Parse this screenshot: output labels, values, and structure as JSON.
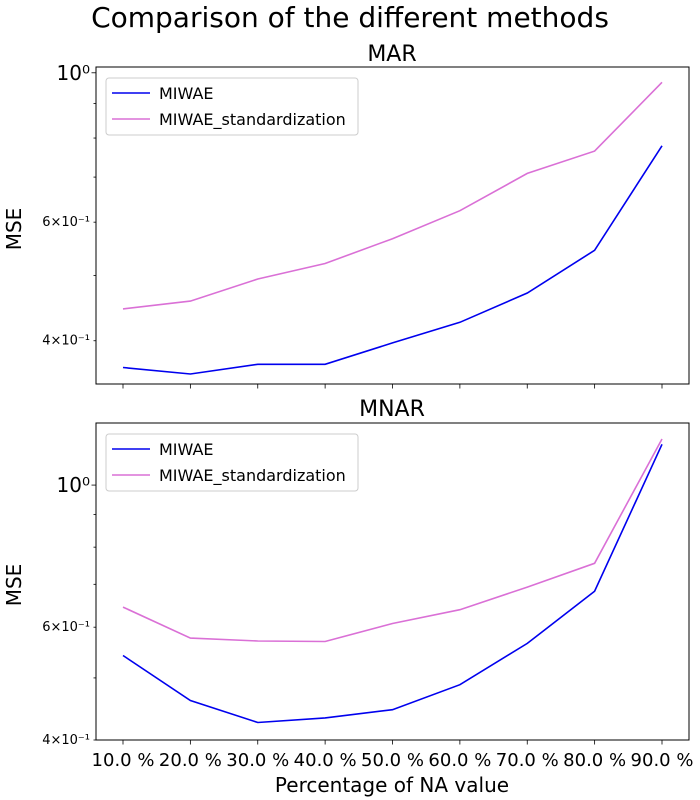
{
  "figure_title": "Comparison of the different methods",
  "x_label": "Percentage of NA value",
  "colors": {
    "MIWAE": "#0000ee",
    "MIWAE_standardization": "#da70d6"
  },
  "chart_data": [
    {
      "type": "line",
      "title": "MAR",
      "ylabel": "MSE",
      "yscale": "log",
      "ylim": [
        0.345,
        1.02
      ],
      "x": [
        "10.0 %",
        "20.0 %",
        "30.0 %",
        "40.0 %",
        "50.0 %",
        "60.0 %",
        "70.0 %",
        "80.0 %",
        "90.0 %"
      ],
      "series": [
        {
          "name": "MIWAE",
          "color": "#0000ee",
          "values": [
            0.365,
            0.357,
            0.369,
            0.369,
            0.397,
            0.426,
            0.471,
            0.545,
            0.779
          ]
        },
        {
          "name": "MIWAE_standardization",
          "color": "#da70d6",
          "values": [
            0.446,
            0.458,
            0.494,
            0.521,
            0.567,
            0.624,
            0.709,
            0.765,
            0.968
          ]
        }
      ],
      "yticks": [
        {
          "value": 1.0,
          "label": "10⁰",
          "major": true
        },
        {
          "value": 0.6,
          "label": "6×10⁻¹",
          "major": false
        },
        {
          "value": 0.4,
          "label": "4×10⁻¹",
          "major": false
        }
      ],
      "minor_ticks": [
        0.5,
        0.7,
        0.8,
        0.9
      ],
      "legend": "upper-left",
      "grid": false
    },
    {
      "type": "line",
      "title": "MNAR",
      "ylabel": "MSE",
      "yscale": "log",
      "ylim": [
        0.4,
        1.25
      ],
      "x": [
        "10.0 %",
        "20.0 %",
        "30.0 %",
        "40.0 %",
        "50.0 %",
        "60.0 %",
        "70.0 %",
        "80.0 %",
        "90.0 %"
      ],
      "series": [
        {
          "name": "MIWAE",
          "color": "#0000ee",
          "values": [
            0.542,
            0.461,
            0.426,
            0.433,
            0.446,
            0.488,
            0.566,
            0.683,
            1.158
          ]
        },
        {
          "name": "MIWAE_standardization",
          "color": "#da70d6",
          "values": [
            0.645,
            0.577,
            0.571,
            0.57,
            0.608,
            0.639,
            0.693,
            0.755,
            1.18
          ]
        }
      ],
      "yticks": [
        {
          "value": 1.0,
          "label": "10⁰",
          "major": true
        },
        {
          "value": 0.6,
          "label": "6×10⁻¹",
          "major": false
        },
        {
          "value": 0.4,
          "label": "4×10⁻¹",
          "major": false
        }
      ],
      "minor_ticks": [
        0.5,
        0.7,
        0.8,
        0.9
      ],
      "legend": "upper-left",
      "grid": false
    }
  ]
}
